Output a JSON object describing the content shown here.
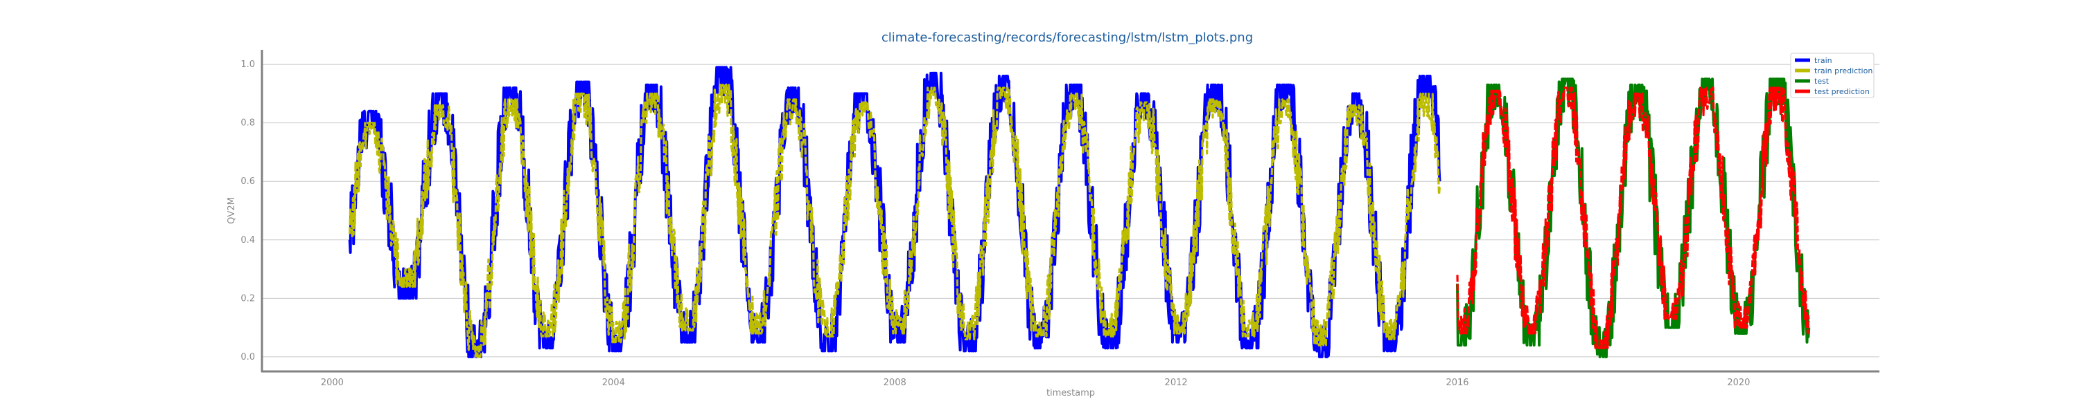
{
  "chart_data": {
    "type": "line",
    "title": "climate-forecasting/records/forecasting/lstm/lstm_plots.png",
    "xlabel": "timestamp",
    "ylabel": "QV2M",
    "x_range": [
      "1999-01-01",
      "2022-01-01"
    ],
    "ylim": [
      -0.05,
      1.05
    ],
    "x_ticks": [
      "2000",
      "2004",
      "2008",
      "2012",
      "2016",
      "2020"
    ],
    "y_ticks": [
      "0.0",
      "0.2",
      "0.4",
      "0.6",
      "0.8",
      "1.0"
    ],
    "grid": "horizontal",
    "legend_position": "top-right",
    "series": [
      {
        "name": "train",
        "color": "#0000ff",
        "x_start": "2000-04-01",
        "x_end": "2015-10-01",
        "peaks": [
          0.84,
          0.9,
          0.92,
          0.94,
          0.93,
          0.99,
          0.92,
          0.9,
          0.97,
          0.96,
          0.93,
          0.9,
          0.93,
          0.93,
          0.9,
          0.96
        ],
        "troughs": [
          0.2,
          0.0,
          0.03,
          0.02,
          0.05,
          0.05,
          0.02,
          0.05,
          0.02,
          0.03,
          0.03,
          0.05,
          0.03,
          0.0,
          0.02
        ],
        "start": 0.4,
        "end": 0.6
      },
      {
        "name": "train prediction",
        "color": "#bcbc00",
        "x_start": "2000-04-01",
        "x_end": "2015-10-01",
        "peaks": [
          0.8,
          0.86,
          0.88,
          0.9,
          0.9,
          0.93,
          0.88,
          0.87,
          0.92,
          0.92,
          0.9,
          0.87,
          0.88,
          0.88,
          0.86,
          0.9
        ],
        "troughs": [
          0.24,
          0.0,
          0.07,
          0.05,
          0.09,
          0.08,
          0.07,
          0.08,
          0.06,
          0.07,
          0.07,
          0.08,
          0.07,
          0.04,
          0.06
        ],
        "start": 0.42,
        "end": 0.58
      },
      {
        "name": "test",
        "color": "#008000",
        "x_start": "2016-01-01",
        "x_end": "2020-12-31",
        "peaks": [
          0.93,
          0.95,
          0.93,
          0.95,
          0.95
        ],
        "troughs": [
          0.04,
          0.0,
          0.1,
          0.08,
          0.05
        ],
        "start": 0.25,
        "end": 0.1
      },
      {
        "name": "test prediction",
        "color": "#ff0000",
        "x_start": "2016-01-01",
        "x_end": "2020-12-31",
        "peaks": [
          0.91,
          0.92,
          0.9,
          0.92,
          0.92
        ],
        "troughs": [
          0.08,
          0.03,
          0.13,
          0.1,
          0.08
        ],
        "start": 0.28,
        "end": 0.12
      }
    ]
  }
}
